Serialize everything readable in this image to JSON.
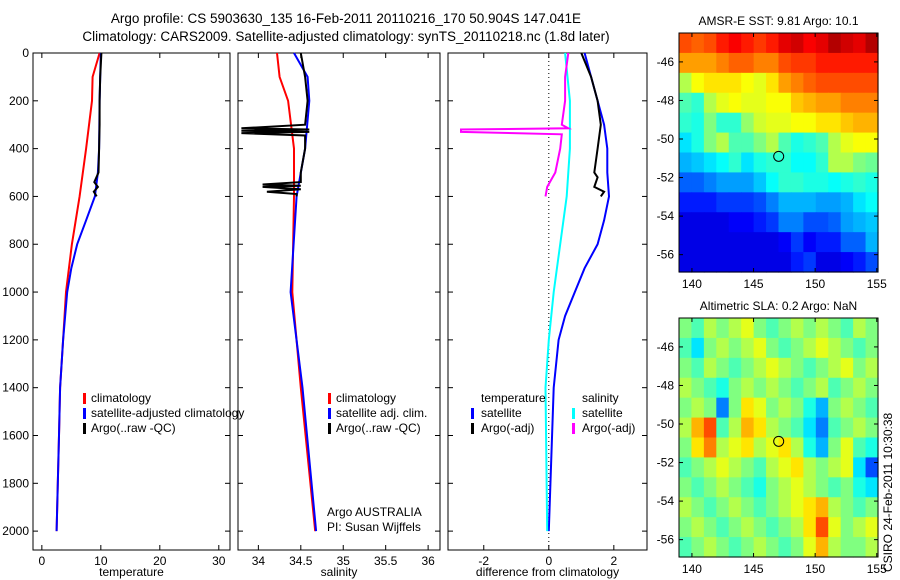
{
  "title_line1": "Argo profile: CS 5903630_135 16-Feb-2011 20110216_170 50.904S 147.041E",
  "title_line2": "Climatology: CARS2009. Satellite-adjusted climatology: synTS_20110218.nc (1.8d later)",
  "footer_stamp": "CSIRO 24-Feb-2011 10:30:38",
  "colors": {
    "red": "#ff0000",
    "blue": "#0000ff",
    "black": "#000000",
    "cyan": "#00ffff",
    "magenta": "#ff00ff"
  },
  "chart_data": [
    {
      "type": "line",
      "id": "temperature",
      "xlabel": "temperature",
      "ylabel": "",
      "xlim": [
        -1.5,
        31.9
      ],
      "ylim": [
        2079,
        0
      ],
      "xticks": [
        0,
        10,
        20,
        30
      ],
      "yticks": [
        0,
        200,
        400,
        600,
        800,
        1000,
        1200,
        1400,
        1600,
        1800,
        2000
      ],
      "legend": [
        "climatology",
        "satellite-adjusted climatology",
        "Argo(..raw -QC)"
      ],
      "series": [
        {
          "name": "climatology",
          "color": "red",
          "y": [
            0,
            100,
            200,
            400,
            600,
            800,
            1000,
            1200,
            1400,
            1600,
            1800,
            2000
          ],
          "x": [
            9.8,
            8.6,
            8.5,
            7.5,
            6.4,
            5.1,
            4.1,
            3.6,
            3.1,
            2.9,
            2.7,
            2.5
          ]
        },
        {
          "name": "satellite-adjusted climatology",
          "color": "blue",
          "y": [
            0,
            100,
            200,
            400,
            500,
            600,
            700,
            800,
            900,
            1000,
            1200,
            1400,
            1600,
            1800,
            2000
          ],
          "x": [
            10,
            9.9,
            9.8,
            9.7,
            9.5,
            9.0,
            7.5,
            6.0,
            5.0,
            4.3,
            3.6,
            3.1,
            2.9,
            2.7,
            2.5
          ]
        },
        {
          "name": "Argo(..raw -QC)",
          "color": "black",
          "y": [
            0,
            50,
            100,
            200,
            300,
            400,
            500,
            540,
            560,
            580,
            600
          ],
          "x": [
            10.1,
            10,
            9.9,
            9.8,
            9.8,
            9.7,
            9.6,
            8.9,
            9.5,
            8.8,
            9.3
          ]
        }
      ]
    },
    {
      "type": "line",
      "id": "salinity",
      "xlabel": "salinity",
      "xlim": [
        33.76,
        36.14
      ],
      "ylim": [
        2079,
        0
      ],
      "xticks": [
        34,
        34.5,
        35,
        35.5,
        36
      ],
      "legend": [
        "climatology",
        "satellite adj. clim.",
        "Argo(..raw -QC)"
      ],
      "annotation": [
        "Argo AUSTRALIA",
        "PI: Susan Wijffels"
      ],
      "series": [
        {
          "name": "climatology",
          "color": "red",
          "y": [
            0,
            100,
            200,
            400,
            600,
            1000,
            1400,
            2000
          ],
          "x": [
            34.22,
            34.25,
            34.35,
            34.42,
            34.42,
            34.4,
            34.5,
            34.67
          ]
        },
        {
          "name": "satellite adj. clim.",
          "color": "blue",
          "y": [
            0,
            100,
            200,
            400,
            600,
            1000,
            1400,
            2000
          ],
          "x": [
            34.42,
            34.58,
            34.6,
            34.55,
            34.45,
            34.38,
            34.52,
            34.68
          ]
        },
        {
          "name": "Argo(..raw -QC)",
          "color": "black",
          "y": [
            0,
            100,
            200,
            300,
            315,
            320,
            325,
            330,
            335,
            345,
            400,
            500,
            540,
            550,
            555,
            560,
            570,
            580,
            590,
            600
          ],
          "x": [
            34.5,
            34.55,
            34.58,
            34.55,
            33.8,
            34.6,
            33.8,
            34.6,
            33.8,
            34.55,
            34.55,
            34.5,
            34.5,
            34.05,
            34.5,
            34.05,
            34.5,
            34.1,
            34.45,
            34.45
          ]
        }
      ]
    },
    {
      "type": "line",
      "id": "difference",
      "xlabel": "difference from climatology",
      "xlim": [
        -3.1,
        3.02
      ],
      "ylim": [
        2079,
        0
      ],
      "xticks": [
        -2,
        0,
        2
      ],
      "legend_headers": [
        "temperature",
        "salinity"
      ],
      "legend": [
        "satellite",
        "Argo(-adj)",
        "satellite",
        "Argo(-adj)"
      ],
      "series": [
        {
          "name": "temperature satellite",
          "color": "blue",
          "y": [
            0,
            100,
            200,
            300,
            400,
            500,
            600,
            700,
            800,
            900,
            1000,
            1100,
            1200,
            1400,
            2000
          ],
          "x": [
            1.1,
            1.3,
            1.5,
            1.7,
            1.8,
            1.8,
            1.85,
            1.7,
            1.5,
            1.1,
            0.8,
            0.5,
            0.3,
            0.15,
            0
          ]
        },
        {
          "name": "temperature Argo(-adj)",
          "color": "black",
          "y": [
            0,
            100,
            200,
            300,
            400,
            500,
            520,
            560,
            580,
            600
          ],
          "x": [
            1.0,
            1.3,
            1.5,
            1.6,
            1.5,
            1.4,
            1.5,
            1.4,
            1.7,
            1.6
          ]
        },
        {
          "name": "salinity satellite",
          "color": "cyan",
          "y": [
            0,
            200,
            400,
            600,
            800,
            1000,
            1200,
            1400,
            2000
          ],
          "x": [
            0.5,
            0.65,
            0.65,
            0.55,
            0.35,
            0.15,
            0,
            -0.1,
            -0.05
          ]
        },
        {
          "name": "salinity Argo(-adj)",
          "color": "magenta",
          "y": [
            0,
            100,
            200,
            300,
            315,
            320,
            330,
            340,
            400,
            500,
            560,
            600
          ],
          "x": [
            0.6,
            0.5,
            0.5,
            0.4,
            0.6,
            -2.7,
            -2.7,
            0.4,
            0.35,
            0.2,
            -0.05,
            -0.1
          ]
        }
      ]
    },
    {
      "type": "heatmap",
      "id": "sst_map",
      "title": "AMSR-E SST: 9.81 Argo: 10.1",
      "xlim": [
        138.95,
        155.1
      ],
      "ylim": [
        -56.9,
        -44.5
      ],
      "xticks": [
        140,
        145,
        150,
        155
      ],
      "yticks": [
        -46,
        -48,
        -50,
        -52,
        -54,
        -56
      ],
      "argo_position": [
        147.04,
        -50.9
      ],
      "grid_normalized": [
        [
          0.8,
          0.78,
          0.8,
          0.85,
          0.88,
          0.85,
          0.82,
          0.85,
          0.9,
          0.92,
          0.88,
          0.9,
          0.95,
          0.92,
          0.9,
          0.95
        ],
        [
          0.72,
          0.72,
          0.72,
          0.75,
          0.78,
          0.78,
          0.75,
          0.75,
          0.8,
          0.82,
          0.82,
          0.85,
          0.85,
          0.85,
          0.85,
          0.85
        ],
        [
          0.55,
          0.62,
          0.65,
          0.65,
          0.65,
          0.62,
          0.6,
          0.65,
          0.72,
          0.75,
          0.78,
          0.8,
          0.8,
          0.8,
          0.8,
          0.8
        ],
        [
          0.45,
          0.42,
          0.55,
          0.6,
          0.62,
          0.6,
          0.6,
          0.62,
          0.62,
          0.68,
          0.7,
          0.72,
          0.72,
          0.75,
          0.75,
          0.75
        ],
        [
          0.42,
          0.4,
          0.5,
          0.42,
          0.42,
          0.52,
          0.58,
          0.6,
          0.6,
          0.62,
          0.62,
          0.65,
          0.65,
          0.68,
          0.7,
          0.7
        ],
        [
          0.35,
          0.4,
          0.5,
          0.55,
          0.45,
          0.45,
          0.5,
          0.55,
          0.45,
          0.4,
          0.42,
          0.45,
          0.55,
          0.6,
          0.62,
          0.62
        ],
        [
          0.3,
          0.32,
          0.35,
          0.38,
          0.42,
          0.35,
          0.4,
          0.42,
          0.42,
          0.38,
          0.38,
          0.42,
          0.55,
          0.55,
          0.5,
          0.48
        ],
        [
          0.22,
          0.22,
          0.25,
          0.28,
          0.28,
          0.28,
          0.32,
          0.38,
          0.42,
          0.42,
          0.4,
          0.4,
          0.38,
          0.4,
          0.42,
          0.4
        ],
        [
          0.15,
          0.15,
          0.15,
          0.18,
          0.18,
          0.18,
          0.2,
          0.25,
          0.3,
          0.3,
          0.3,
          0.28,
          0.28,
          0.3,
          0.35,
          0.38
        ],
        [
          0.1,
          0.1,
          0.1,
          0.1,
          0.12,
          0.12,
          0.15,
          0.18,
          0.25,
          0.25,
          0.2,
          0.2,
          0.22,
          0.28,
          0.3,
          0.32
        ],
        [
          0.1,
          0.1,
          0.1,
          0.1,
          0.1,
          0.1,
          0.1,
          0.1,
          0.12,
          0.18,
          0.12,
          0.15,
          0.15,
          0.22,
          0.22,
          0.3
        ],
        [
          0.1,
          0.1,
          0.1,
          0.1,
          0.1,
          0.1,
          0.1,
          0.1,
          0.1,
          0.15,
          0.18,
          0.1,
          0.1,
          0.12,
          0.15,
          0.2
        ]
      ]
    },
    {
      "type": "heatmap",
      "id": "sla_map",
      "title": "Altimetric SLA: 0.2 Argo: NaN",
      "xlim": [
        138.95,
        155.1
      ],
      "ylim": [
        -56.9,
        -44.5
      ],
      "xticks": [
        140,
        145,
        150,
        155
      ],
      "yticks": [
        -46,
        -48,
        -50,
        -52,
        -54,
        -56
      ],
      "argo_position": [
        147.04,
        -50.9
      ],
      "grid_normalized": [
        [
          0.5,
          0.45,
          0.55,
          0.5,
          0.55,
          0.6,
          0.5,
          0.45,
          0.5,
          0.55,
          0.5,
          0.55,
          0.5,
          0.45,
          0.55,
          0.5
        ],
        [
          0.45,
          0.35,
          0.5,
          0.55,
          0.5,
          0.55,
          0.6,
          0.5,
          0.45,
          0.5,
          0.55,
          0.6,
          0.55,
          0.5,
          0.45,
          0.5
        ],
        [
          0.5,
          0.45,
          0.55,
          0.5,
          0.45,
          0.5,
          0.55,
          0.6,
          0.55,
          0.5,
          0.45,
          0.5,
          0.55,
          0.6,
          0.5,
          0.55
        ],
        [
          0.55,
          0.5,
          0.45,
          0.4,
          0.5,
          0.55,
          0.5,
          0.55,
          0.5,
          0.45,
          0.5,
          0.55,
          0.45,
          0.5,
          0.55,
          0.5
        ],
        [
          0.5,
          0.55,
          0.5,
          0.25,
          0.5,
          0.65,
          0.6,
          0.5,
          0.55,
          0.5,
          0.4,
          0.3,
          0.5,
          0.55,
          0.5,
          0.45
        ],
        [
          0.55,
          0.7,
          0.8,
          0.45,
          0.55,
          0.7,
          0.65,
          0.55,
          0.5,
          0.45,
          0.35,
          0.25,
          0.45,
          0.5,
          0.55,
          0.5
        ],
        [
          0.5,
          0.65,
          0.75,
          0.55,
          0.6,
          0.65,
          0.55,
          0.6,
          0.65,
          0.55,
          0.4,
          0.3,
          0.5,
          0.6,
          0.45,
          0.4
        ],
        [
          0.45,
          0.5,
          0.55,
          0.6,
          0.55,
          0.5,
          0.45,
          0.55,
          0.6,
          0.65,
          0.55,
          0.5,
          0.55,
          0.6,
          0.35,
          0.2
        ],
        [
          0.5,
          0.45,
          0.5,
          0.55,
          0.5,
          0.45,
          0.4,
          0.5,
          0.55,
          0.6,
          0.55,
          0.5,
          0.45,
          0.5,
          0.4,
          0.35
        ],
        [
          0.55,
          0.5,
          0.45,
          0.5,
          0.55,
          0.5,
          0.45,
          0.5,
          0.55,
          0.6,
          0.65,
          0.7,
          0.55,
          0.5,
          0.45,
          0.5
        ],
        [
          0.5,
          0.55,
          0.5,
          0.45,
          0.5,
          0.55,
          0.5,
          0.45,
          0.5,
          0.55,
          0.65,
          0.8,
          0.6,
          0.5,
          0.55,
          0.6
        ],
        [
          0.45,
          0.5,
          0.55,
          0.5,
          0.45,
          0.5,
          0.55,
          0.5,
          0.45,
          0.5,
          0.6,
          0.7,
          0.55,
          0.5,
          0.5,
          0.55
        ]
      ]
    }
  ]
}
